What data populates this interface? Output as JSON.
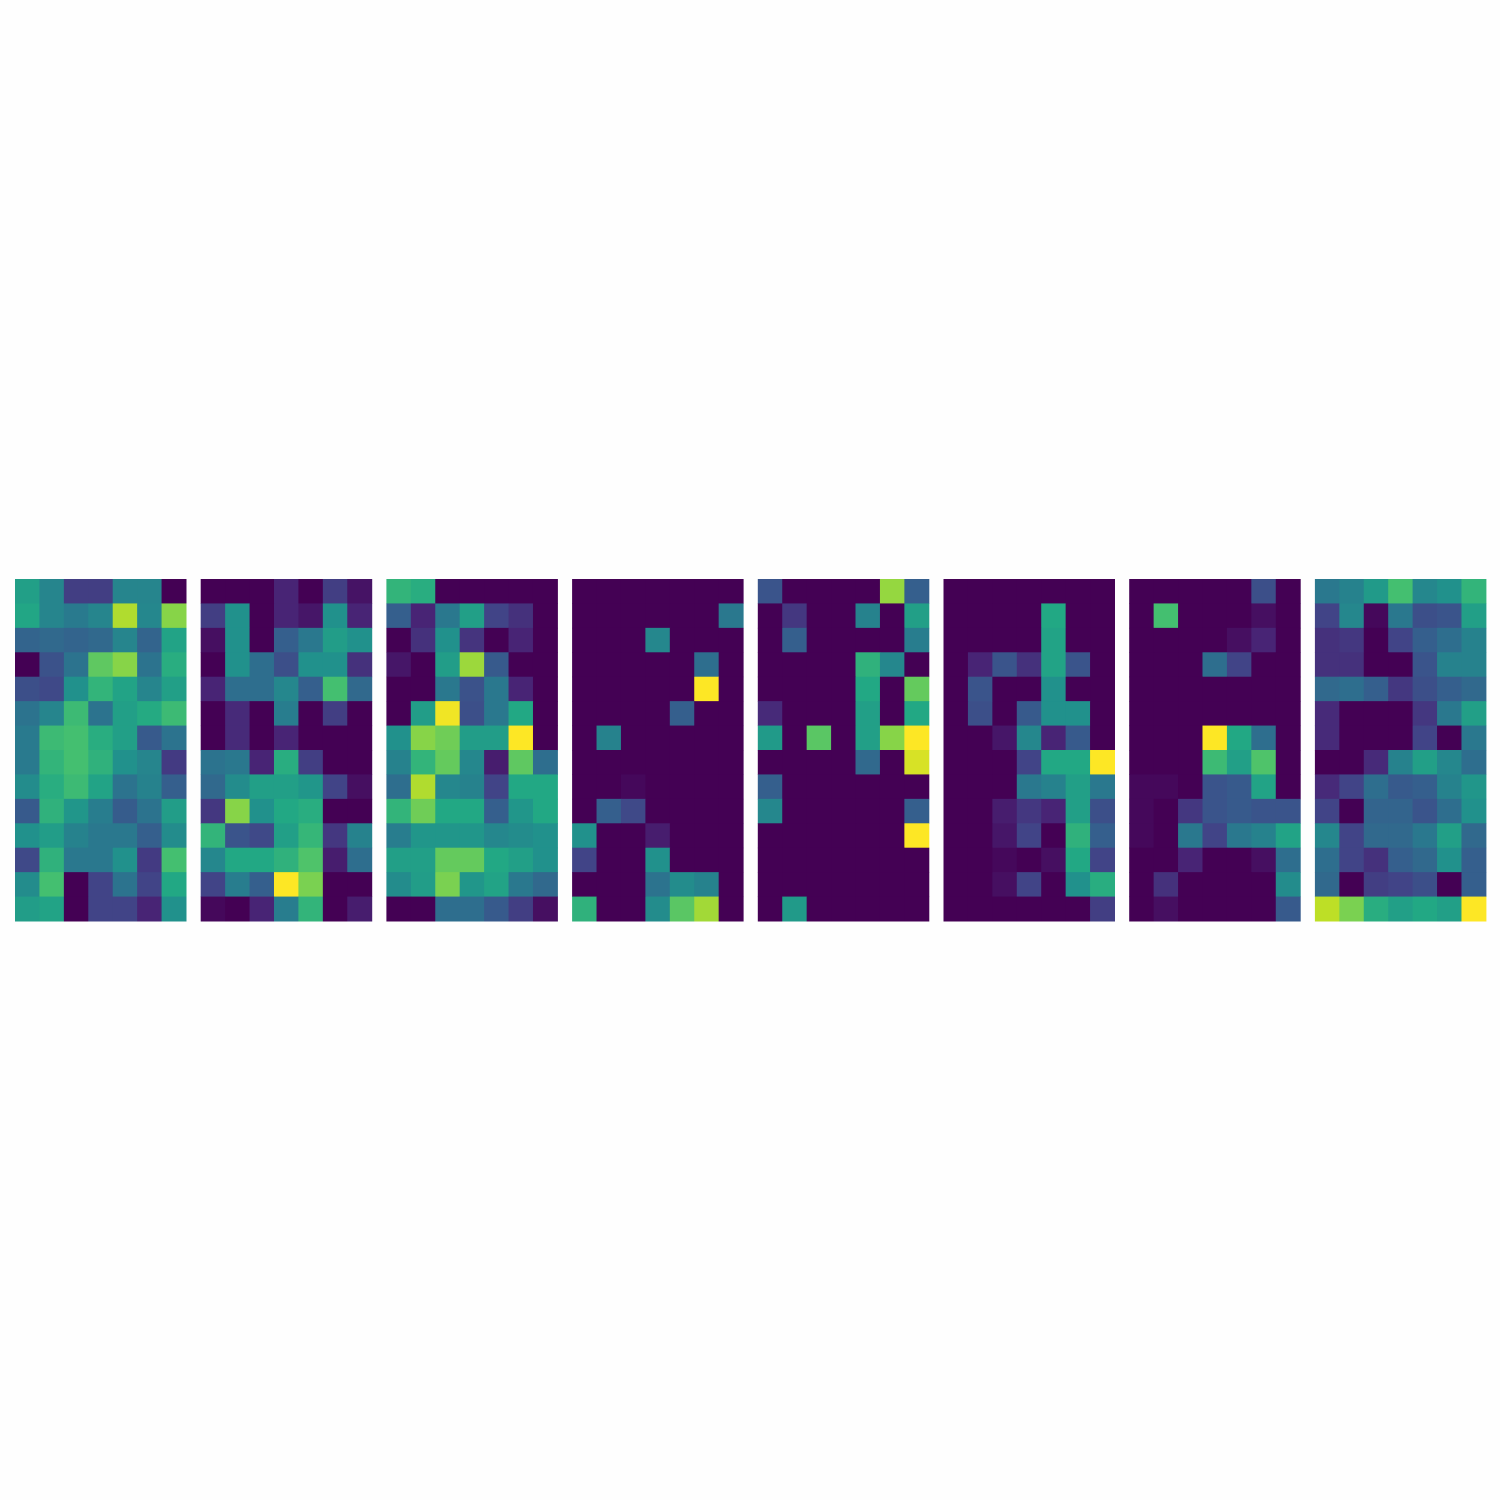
{
  "chart_data": {
    "type": "heatmap",
    "colormap": "viridis",
    "value_range": [
      0,
      1
    ],
    "rows": 14,
    "cols": 7,
    "axes_visible": false,
    "panels": [
      {
        "values": [
          [
            0.56,
            0.45,
            0.18,
            0.18,
            0.45,
            0.45,
            0.0
          ],
          [
            0.59,
            0.45,
            0.41,
            0.45,
            0.88,
            0.46,
            0.82
          ],
          [
            0.32,
            0.34,
            0.32,
            0.34,
            0.45,
            0.32,
            0.58
          ],
          [
            0.0,
            0.25,
            0.38,
            0.75,
            0.82,
            0.38,
            0.62
          ],
          [
            0.24,
            0.22,
            0.5,
            0.65,
            0.58,
            0.45,
            0.56
          ],
          [
            0.38,
            0.45,
            0.68,
            0.38,
            0.56,
            0.61,
            0.68
          ],
          [
            0.41,
            0.68,
            0.7,
            0.62,
            0.56,
            0.28,
            0.38
          ],
          [
            0.41,
            0.65,
            0.7,
            0.64,
            0.5,
            0.45,
            0.17
          ],
          [
            0.48,
            0.62,
            0.68,
            0.58,
            0.38,
            0.44,
            0.3
          ],
          [
            0.28,
            0.64,
            0.52,
            0.42,
            0.29,
            0.38,
            0.55
          ],
          [
            0.5,
            0.55,
            0.44,
            0.4,
            0.4,
            0.3,
            0.48
          ],
          [
            0.22,
            0.64,
            0.4,
            0.4,
            0.5,
            0.17,
            0.7
          ],
          [
            0.48,
            0.7,
            0.0,
            0.2,
            0.38,
            0.2,
            0.6
          ],
          [
            0.55,
            0.58,
            0.0,
            0.2,
            0.2,
            0.1,
            0.5
          ]
        ]
      },
      {
        "values": [
          [
            0.0,
            0.0,
            0.0,
            0.1,
            0.0,
            0.18,
            0.05
          ],
          [
            0.18,
            0.5,
            0.0,
            0.1,
            0.06,
            0.5,
            0.1
          ],
          [
            0.04,
            0.5,
            0.0,
            0.3,
            0.4,
            0.55,
            0.5
          ],
          [
            0.0,
            0.5,
            0.36,
            0.24,
            0.5,
            0.5,
            0.14
          ],
          [
            0.1,
            0.36,
            0.36,
            0.46,
            0.3,
            0.7,
            0.34
          ],
          [
            0.0,
            0.12,
            0.0,
            0.42,
            0.0,
            0.18,
            0.0
          ],
          [
            0.0,
            0.12,
            0.0,
            0.1,
            0.0,
            0.0,
            0.0
          ],
          [
            0.38,
            0.4,
            0.1,
            0.62,
            0.18,
            0.0,
            0.0
          ],
          [
            0.34,
            0.48,
            0.56,
            0.56,
            0.52,
            0.2,
            0.04
          ],
          [
            0.16,
            0.82,
            0.5,
            0.6,
            0.62,
            0.0,
            0.0
          ],
          [
            0.65,
            0.26,
            0.22,
            0.56,
            0.66,
            0.16,
            0.44
          ],
          [
            0.46,
            0.6,
            0.6,
            0.64,
            0.72,
            0.08,
            0.36
          ],
          [
            0.2,
            0.42,
            0.3,
            1.0,
            0.8,
            0.0,
            0.0
          ],
          [
            0.02,
            0.0,
            0.1,
            0.42,
            0.65,
            0.0,
            0.08
          ]
        ]
      },
      {
        "values": [
          [
            0.65,
            0.62,
            0.0,
            0.0,
            0.0,
            0.0,
            0.0
          ],
          [
            0.3,
            0.1,
            0.4,
            0.56,
            0.2,
            0.14,
            0.0
          ],
          [
            0.0,
            0.14,
            0.5,
            0.15,
            0.0,
            0.1,
            0.0
          ],
          [
            0.06,
            0.0,
            0.55,
            0.85,
            0.28,
            0.0,
            0.0
          ],
          [
            0.0,
            0.0,
            0.4,
            0.25,
            0.4,
            0.1,
            0.0
          ],
          [
            0.0,
            0.55,
            0.98,
            0.24,
            0.4,
            0.6,
            0.0
          ],
          [
            0.5,
            0.82,
            0.78,
            0.55,
            0.55,
            1.0,
            0.0
          ],
          [
            0.44,
            0.65,
            0.76,
            0.46,
            0.08,
            0.75,
            0.36
          ],
          [
            0.36,
            0.88,
            0.46,
            0.44,
            0.2,
            0.6,
            0.6
          ],
          [
            0.65,
            0.78,
            0.6,
            0.6,
            0.3,
            0.52,
            0.6
          ],
          [
            0.42,
            0.52,
            0.52,
            0.52,
            0.46,
            0.48,
            0.5
          ],
          [
            0.56,
            0.56,
            0.76,
            0.76,
            0.6,
            0.56,
            0.5
          ],
          [
            0.48,
            0.55,
            0.8,
            0.52,
            0.58,
            0.4,
            0.34
          ],
          [
            0.0,
            0.0,
            0.36,
            0.36,
            0.28,
            0.18,
            0.04
          ]
        ]
      },
      {
        "values": [
          [
            0.0,
            0.0,
            0.0,
            0.0,
            0.0,
            0.0,
            0.0
          ],
          [
            0.0,
            0.0,
            0.0,
            0.0,
            0.0,
            0.0,
            0.4
          ],
          [
            0.0,
            0.0,
            0.0,
            0.46,
            0.0,
            0.0,
            0.0
          ],
          [
            0.0,
            0.0,
            0.0,
            0.0,
            0.0,
            0.36,
            0.0
          ],
          [
            0.0,
            0.0,
            0.0,
            0.0,
            0.0,
            1.0,
            0.0
          ],
          [
            0.0,
            0.0,
            0.0,
            0.0,
            0.3,
            0.0,
            0.0
          ],
          [
            0.0,
            0.44,
            0.0,
            0.0,
            0.0,
            0.0,
            0.0
          ],
          [
            0.0,
            0.0,
            0.0,
            0.0,
            0.0,
            0.0,
            0.0
          ],
          [
            0.0,
            0.0,
            0.02,
            0.0,
            0.0,
            0.0,
            0.0
          ],
          [
            0.0,
            0.3,
            0.22,
            0.0,
            0.0,
            0.0,
            0.0
          ],
          [
            0.5,
            0.0,
            0.0,
            0.08,
            0.0,
            0.0,
            0.0
          ],
          [
            0.2,
            0.0,
            0.0,
            0.5,
            0.0,
            0.0,
            0.0
          ],
          [
            0.0,
            0.0,
            0.0,
            0.38,
            0.48,
            0.44,
            0.0
          ],
          [
            0.64,
            0.0,
            0.0,
            0.48,
            0.74,
            0.86,
            0.0
          ]
        ]
      },
      {
        "values": [
          [
            0.26,
            0.0,
            0.0,
            0.0,
            0.0,
            0.84,
            0.3
          ],
          [
            0.0,
            0.16,
            0.0,
            0.0,
            0.44,
            0.0,
            0.56
          ],
          [
            0.0,
            0.3,
            0.0,
            0.0,
            0.0,
            0.0,
            0.42
          ],
          [
            0.0,
            0.0,
            0.0,
            0.0,
            0.64,
            0.46,
            0.0
          ],
          [
            0.0,
            0.0,
            0.0,
            0.0,
            0.6,
            0.0,
            0.76
          ],
          [
            0.12,
            0.0,
            0.0,
            0.0,
            0.56,
            0.0,
            0.6
          ],
          [
            0.54,
            0.0,
            0.74,
            0.0,
            0.56,
            0.82,
            1.0
          ],
          [
            0.0,
            0.0,
            0.0,
            0.0,
            0.34,
            0.0,
            0.94
          ],
          [
            0.3,
            0.0,
            0.0,
            0.0,
            0.0,
            0.0,
            0.0
          ],
          [
            0.46,
            0.0,
            0.0,
            0.0,
            0.0,
            0.0,
            0.3
          ],
          [
            0.0,
            0.0,
            0.0,
            0.0,
            0.0,
            0.0,
            1.0
          ],
          [
            0.0,
            0.0,
            0.0,
            0.0,
            0.0,
            0.0,
            0.0
          ],
          [
            0.0,
            0.0,
            0.0,
            0.0,
            0.0,
            0.0,
            0.0
          ],
          [
            0.0,
            0.54,
            0.0,
            0.0,
            0.0,
            0.0,
            0.0
          ]
        ]
      },
      {
        "values": [
          [
            0.0,
            0.0,
            0.0,
            0.0,
            0.0,
            0.0,
            0.0
          ],
          [
            0.0,
            0.0,
            0.0,
            0.0,
            0.6,
            0.0,
            0.0
          ],
          [
            0.0,
            0.0,
            0.0,
            0.0,
            0.58,
            0.0,
            0.0
          ],
          [
            0.0,
            0.1,
            0.26,
            0.14,
            0.58,
            0.26,
            0.0
          ],
          [
            0.0,
            0.26,
            0.0,
            0.0,
            0.5,
            0.0,
            0.0
          ],
          [
            0.0,
            0.24,
            0.0,
            0.28,
            0.5,
            0.5,
            0.0
          ],
          [
            0.0,
            0.0,
            0.06,
            0.46,
            0.1,
            0.28,
            0.0
          ],
          [
            0.0,
            0.0,
            0.0,
            0.2,
            0.6,
            0.6,
            1.0
          ],
          [
            0.0,
            0.0,
            0.0,
            0.4,
            0.44,
            0.56,
            0.4
          ],
          [
            0.0,
            0.0,
            0.08,
            0.16,
            0.1,
            0.56,
            0.24
          ],
          [
            0.0,
            0.0,
            0.06,
            0.2,
            0.0,
            0.64,
            0.3
          ],
          [
            0.0,
            0.0,
            0.02,
            0.0,
            0.04,
            0.6,
            0.2
          ],
          [
            0.0,
            0.0,
            0.04,
            0.2,
            0.0,
            0.5,
            0.62
          ],
          [
            0.0,
            0.0,
            0.0,
            0.0,
            0.0,
            0.0,
            0.18
          ]
        ]
      },
      {
        "values": [
          [
            0.0,
            0.0,
            0.0,
            0.0,
            0.0,
            0.24,
            0.0
          ],
          [
            0.0,
            0.7,
            0.0,
            0.0,
            0.0,
            0.04,
            0.0
          ],
          [
            0.0,
            0.0,
            0.0,
            0.0,
            0.04,
            0.1,
            0.0
          ],
          [
            0.0,
            0.0,
            0.0,
            0.36,
            0.2,
            0.0,
            0.0
          ],
          [
            0.0,
            0.0,
            0.0,
            0.0,
            0.0,
            0.0,
            0.0
          ],
          [
            0.0,
            0.0,
            0.0,
            0.0,
            0.0,
            0.0,
            0.0
          ],
          [
            0.0,
            0.0,
            0.0,
            1.0,
            0.6,
            0.36,
            0.0
          ],
          [
            0.0,
            0.0,
            0.0,
            0.68,
            0.56,
            0.72,
            0.0
          ],
          [
            0.02,
            0.02,
            0.0,
            0.26,
            0.28,
            0.58,
            0.0
          ],
          [
            0.02,
            0.0,
            0.16,
            0.26,
            0.28,
            0.26,
            0.26
          ],
          [
            0.02,
            0.0,
            0.4,
            0.2,
            0.4,
            0.44,
            0.58
          ],
          [
            0.0,
            0.0,
            0.1,
            0.0,
            0.0,
            0.04,
            0.36
          ],
          [
            0.0,
            0.14,
            0.0,
            0.0,
            0.0,
            0.0,
            0.48
          ],
          [
            0.0,
            0.04,
            0.0,
            0.0,
            0.0,
            0.0,
            0.28
          ]
        ]
      },
      {
        "values": [
          [
            0.4,
            0.44,
            0.54,
            0.7,
            0.46,
            0.5,
            0.65
          ],
          [
            0.2,
            0.46,
            0.02,
            0.4,
            0.24,
            0.26,
            0.56
          ],
          [
            0.14,
            0.16,
            0.0,
            0.2,
            0.3,
            0.36,
            0.44
          ],
          [
            0.14,
            0.14,
            0.0,
            0.0,
            0.26,
            0.44,
            0.44
          ],
          [
            0.34,
            0.36,
            0.3,
            0.16,
            0.24,
            0.3,
            0.34
          ],
          [
            0.12,
            0.0,
            0.0,
            0.0,
            0.16,
            0.4,
            0.56
          ],
          [
            0.12,
            0.0,
            0.0,
            0.0,
            0.2,
            0.0,
            0.4
          ],
          [
            0.0,
            0.0,
            0.12,
            0.44,
            0.56,
            0.46,
            0.36
          ],
          [
            0.12,
            0.2,
            0.36,
            0.28,
            0.3,
            0.44,
            0.52
          ],
          [
            0.2,
            0.0,
            0.32,
            0.32,
            0.26,
            0.36,
            0.5
          ],
          [
            0.46,
            0.2,
            0.34,
            0.34,
            0.4,
            0.56,
            0.34
          ],
          [
            0.36,
            0.2,
            0.14,
            0.3,
            0.34,
            0.5,
            0.3
          ],
          [
            0.34,
            0.0,
            0.18,
            0.2,
            0.24,
            0.0,
            0.3
          ],
          [
            0.9,
            0.8,
            0.62,
            0.56,
            0.6,
            0.56,
            1.0
          ]
        ]
      }
    ]
  }
}
